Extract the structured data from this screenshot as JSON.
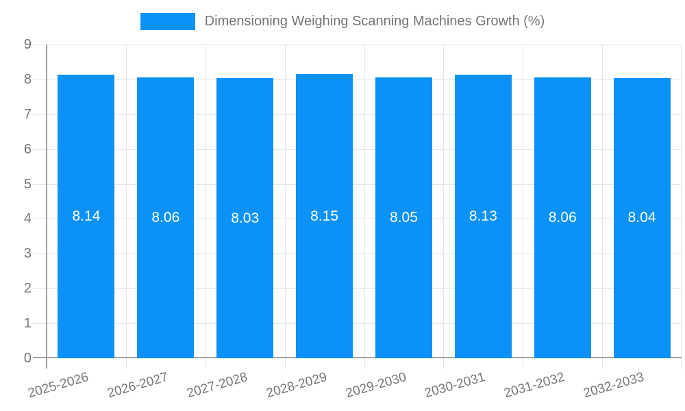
{
  "legend": {
    "label": "Dimensioning Weighing Scanning Machines Growth (%)"
  },
  "chart_data": {
    "type": "bar",
    "title": "Dimensioning Weighing Scanning Machines Growth (%)",
    "categories": [
      "2025-2026",
      "2026-2027",
      "2027-2028",
      "2028-2029",
      "2029-2030",
      "2030-2031",
      "2031-2032",
      "2032-2033"
    ],
    "values": [
      8.14,
      8.06,
      8.03,
      8.15,
      8.05,
      8.13,
      8.06,
      8.04
    ],
    "value_labels": [
      "8.14",
      "8.06",
      "8.03",
      "8.15",
      "8.05",
      "8.13",
      "8.06",
      "8.04"
    ],
    "xlabel": "",
    "ylabel": "",
    "ylim": [
      0,
      9
    ],
    "yticks": [
      0,
      1,
      2,
      3,
      4,
      5,
      6,
      7,
      8,
      9
    ],
    "grid": true,
    "legend_position": "top",
    "colors": {
      "bar": "#0c92f7",
      "grid": "#e5e5e5",
      "axis": "#a0a0a0",
      "tick_text": "#757575",
      "bar_label_text": "#ffffff"
    }
  }
}
